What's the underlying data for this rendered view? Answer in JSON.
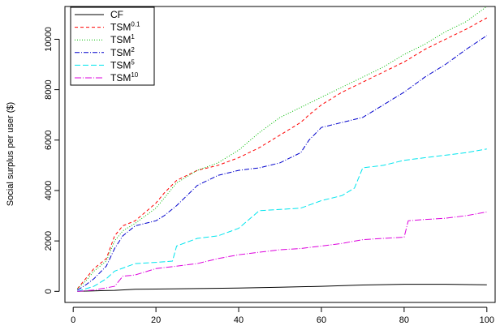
{
  "chart_data": {
    "type": "line",
    "title": "",
    "xlabel": "",
    "ylabel": "Social surplus per user ($)",
    "xlim": [
      0,
      100
    ],
    "ylim": [
      0,
      11000
    ],
    "x_ticks": [
      0,
      20,
      40,
      60,
      80,
      100
    ],
    "y_ticks": [
      0,
      2000,
      4000,
      6000,
      8000,
      10000
    ],
    "x_tick_labels": [
      "0",
      "20",
      "40",
      "60",
      "80",
      "100"
    ],
    "y_tick_labels": [
      "0",
      "2000",
      "4000",
      "6000",
      "8000",
      "10000"
    ],
    "grid": false,
    "legend_position": "top-left",
    "series": [
      {
        "name": "CF",
        "label_base": "CF",
        "label_sup": "",
        "color": "#000000",
        "dash": "",
        "x": [
          1,
          5,
          10,
          15,
          20,
          30,
          40,
          50,
          60,
          70,
          80,
          90,
          100
        ],
        "y": [
          0,
          20,
          40,
          80,
          90,
          110,
          130,
          160,
          200,
          250,
          280,
          280,
          260
        ]
      },
      {
        "name": "TSM^0.1",
        "label_base": "TSM",
        "label_sup": "0.1",
        "color": "#ff0000",
        "dash": "4,3",
        "x": [
          1,
          3,
          5,
          8,
          10,
          12,
          15,
          20,
          22,
          25,
          30,
          35,
          40,
          45,
          50,
          55,
          57,
          60,
          65,
          70,
          75,
          80,
          85,
          90,
          95,
          100
        ],
        "y": [
          100,
          500,
          900,
          1300,
          2200,
          2600,
          2800,
          3500,
          3900,
          4400,
          4800,
          5000,
          5300,
          5700,
          6200,
          6700,
          7000,
          7400,
          7900,
          8300,
          8700,
          9100,
          9600,
          10000,
          10400,
          10850
        ]
      },
      {
        "name": "TSM^1",
        "label_base": "TSM",
        "label_sup": "1",
        "color": "#00bb00",
        "dash": "1,2",
        "x": [
          1,
          3,
          5,
          8,
          10,
          12,
          15,
          20,
          22,
          25,
          30,
          35,
          40,
          45,
          50,
          55,
          60,
          65,
          70,
          75,
          80,
          85,
          90,
          95,
          100
        ],
        "y": [
          100,
          400,
          800,
          1200,
          2000,
          2400,
          2700,
          3300,
          3700,
          4300,
          4800,
          5100,
          5600,
          6300,
          6900,
          7300,
          7700,
          8100,
          8500,
          8900,
          9400,
          9800,
          10300,
          10700,
          11300
        ]
      },
      {
        "name": "TSM^2",
        "label_base": "TSM",
        "label_sup": "2",
        "color": "#0000cc",
        "dash": "6,2,1,2",
        "x": [
          1,
          3,
          5,
          8,
          10,
          12,
          15,
          20,
          22,
          25,
          30,
          35,
          40,
          45,
          50,
          55,
          57,
          60,
          65,
          70,
          75,
          80,
          85,
          90,
          95,
          100
        ],
        "y": [
          50,
          250,
          500,
          1000,
          1700,
          2200,
          2600,
          2800,
          3000,
          3400,
          4200,
          4600,
          4800,
          4900,
          5100,
          5500,
          6000,
          6500,
          6700,
          6900,
          7400,
          7900,
          8500,
          9000,
          9600,
          10150
        ]
      },
      {
        "name": "TSM^5",
        "label_base": "TSM",
        "label_sup": "5",
        "color": "#00e5ee",
        "dash": "7,3",
        "x": [
          1,
          5,
          8,
          10,
          15,
          20,
          24,
          25,
          30,
          35,
          40,
          45,
          50,
          55,
          60,
          65,
          68,
          70,
          75,
          80,
          85,
          90,
          95,
          100
        ],
        "y": [
          0,
          200,
          500,
          800,
          1100,
          1150,
          1200,
          1800,
          2100,
          2200,
          2500,
          3200,
          3250,
          3300,
          3600,
          3800,
          4100,
          4900,
          5000,
          5200,
          5300,
          5400,
          5500,
          5650
        ]
      },
      {
        "name": "TSM^10",
        "label_base": "TSM",
        "label_sup": "10",
        "color": "#dd00dd",
        "dash": "8,2,1,2",
        "x": [
          1,
          5,
          10,
          12,
          15,
          20,
          25,
          30,
          35,
          40,
          45,
          50,
          55,
          60,
          65,
          70,
          75,
          80,
          81,
          85,
          90,
          95,
          100
        ],
        "y": [
          0,
          50,
          200,
          600,
          650,
          900,
          1000,
          1100,
          1300,
          1450,
          1550,
          1650,
          1700,
          1800,
          1900,
          2050,
          2100,
          2150,
          2800,
          2850,
          2900,
          3000,
          3150
        ]
      }
    ]
  }
}
